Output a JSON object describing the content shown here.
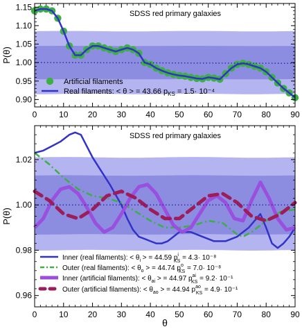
{
  "chart_data": [
    {
      "type": "line",
      "title": "SDSS red primary galaxies",
      "xlabel": "",
      "ylabel": "P(θ)",
      "xlim": [
        0,
        90
      ],
      "ylim": [
        0.88,
        1.16
      ],
      "xticks": [
        "0",
        "10",
        "20",
        "30",
        "40",
        "50",
        "60",
        "70",
        "80",
        "90"
      ],
      "yticks": [
        "0.90",
        "0.95",
        "1.00",
        "1.05",
        "1.10",
        "1.15"
      ],
      "ytick_values": [
        0.9,
        0.95,
        1.0,
        1.05,
        1.1,
        1.15
      ],
      "band_outer": {
        "lower": 0.915,
        "upper": 1.085,
        "color": "#b4b4f0"
      },
      "band_inner": {
        "lower": 0.955,
        "upper": 1.045,
        "color": "#8c8ce0"
      },
      "series": [
        {
          "name": "Artificial filaments",
          "style": "dots",
          "color": "#3cb043",
          "x": [
            0,
            2,
            4,
            6,
            8,
            10,
            12,
            14,
            16,
            18,
            20,
            22,
            24,
            26,
            28,
            30,
            32,
            34,
            36,
            38,
            40,
            42,
            44,
            46,
            48,
            50,
            52,
            54,
            56,
            58,
            60,
            62,
            64,
            66,
            68,
            70,
            72,
            74,
            76,
            78,
            80,
            82,
            84,
            86,
            88,
            90
          ],
          "y": [
            1.14,
            1.145,
            1.145,
            1.14,
            1.12,
            1.085,
            1.045,
            1.02,
            1.02,
            1.035,
            1.045,
            1.045,
            1.04,
            1.035,
            1.03,
            1.035,
            1.04,
            1.035,
            1.025,
            1.0,
            0.995,
            0.985,
            0.978,
            0.972,
            0.968,
            0.965,
            0.963,
            0.96,
            0.957,
            0.956,
            0.96,
            0.958,
            0.955,
            0.97,
            0.985,
            0.995,
            0.998,
            0.995,
            0.99,
            0.985,
            0.975,
            0.96,
            0.945,
            0.93,
            0.918,
            0.905
          ]
        },
        {
          "name": "Real filaments: <θ> = 43.66  p",
          "style": "line",
          "color": "#3232c8",
          "x": [
            0,
            2,
            4,
            6,
            8,
            10,
            12,
            14,
            16,
            18,
            20,
            22,
            24,
            26,
            28,
            30,
            32,
            34,
            36,
            38,
            40,
            42,
            44,
            46,
            48,
            50,
            52,
            54,
            56,
            58,
            60,
            62,
            64,
            66,
            68,
            70,
            72,
            74,
            76,
            78,
            80,
            82,
            84,
            86,
            88,
            90
          ],
          "y": [
            1.14,
            1.145,
            1.145,
            1.14,
            1.12,
            1.085,
            1.045,
            1.02,
            1.02,
            1.035,
            1.045,
            1.045,
            1.04,
            1.035,
            1.03,
            1.035,
            1.04,
            1.035,
            1.025,
            1.0,
            0.995,
            0.985,
            0.978,
            0.972,
            0.968,
            0.965,
            0.963,
            0.96,
            0.957,
            0.956,
            0.96,
            0.958,
            0.955,
            0.97,
            0.985,
            0.995,
            0.998,
            0.995,
            0.99,
            0.985,
            0.975,
            0.96,
            0.945,
            0.93,
            0.918,
            0.905
          ]
        },
        {
          "name": "",
          "style": "dotted",
          "color": "#2828a0",
          "x": [
            0,
            90
          ],
          "y": [
            1.0,
            0.998
          ]
        }
      ],
      "legend": [
        {
          "label": "Artificial filaments",
          "sub": "",
          "tail": ""
        },
        {
          "label": "Real filaments: < θ > = 43.66  p",
          "sub": "KS",
          "tail": " = 1.5· 10⁻⁴"
        }
      ]
    },
    {
      "type": "line",
      "title": "SDSS red primary galaxies",
      "xlabel": "θ",
      "ylabel": "P(θ)",
      "xlim": [
        0,
        90
      ],
      "ylim": [
        0.955,
        1.035
      ],
      "xticks": [
        "0",
        "10",
        "20",
        "30",
        "40",
        "50",
        "60",
        "70",
        "80",
        "90"
      ],
      "yticks": [
        "0.96",
        "0.98",
        "1.00",
        "1.02"
      ],
      "ytick_values": [
        0.96,
        0.98,
        1.0,
        1.02
      ],
      "band_outer": {
        "lower": 0.98,
        "upper": 1.021,
        "color": "#b4b4f0"
      },
      "band_inner": {
        "lower": 0.987,
        "upper": 1.013,
        "color": "#8c8ce0"
      },
      "series": [
        {
          "name": "Inner (real filaments)",
          "style": "line",
          "color": "#3232c8",
          "x": [
            0,
            3,
            6,
            9,
            12,
            14,
            16,
            18,
            20,
            23,
            26,
            30,
            32,
            34,
            36,
            38,
            40,
            42,
            44,
            46,
            48,
            50,
            54,
            58,
            62,
            66,
            70,
            74,
            78,
            80,
            82,
            84,
            86,
            88,
            90
          ],
          "y": [
            1.023,
            1.024,
            1.026,
            1.028,
            1.031,
            1.032,
            1.031,
            1.026,
            1.021,
            1.015,
            1.009,
            1.0,
            0.994,
            0.989,
            0.986,
            0.985,
            0.984,
            0.983,
            0.983,
            0.984,
            0.986,
            0.988,
            0.988,
            0.986,
            0.984,
            0.984,
            0.986,
            0.99,
            0.996,
            0.99,
            0.983,
            0.981,
            0.983,
            0.986,
            0.99
          ]
        },
        {
          "name": "Outer (real filaments)",
          "style": "dashdot",
          "color": "#3cb043",
          "x": [
            0,
            5,
            10,
            15,
            20,
            25,
            30,
            35,
            40,
            45,
            50,
            55,
            60,
            65,
            70,
            72,
            75,
            80,
            85,
            90
          ],
          "y": [
            1.023,
            1.018,
            1.012,
            1.007,
            1.004,
            1.003,
            1.001,
            0.997,
            0.993,
            0.99,
            0.99,
            0.991,
            0.993,
            0.992,
            0.987,
            0.986,
            0.988,
            0.993,
            0.997,
            0.998
          ]
        },
        {
          "name": "Inner (artificial filaments)",
          "style": "thick",
          "color": "#9b4dde",
          "x": [
            0,
            3,
            6,
            9,
            12,
            15,
            18,
            21,
            24,
            27,
            30,
            33,
            36,
            39,
            42,
            45,
            48,
            51,
            54,
            57,
            60,
            63,
            66,
            69,
            72,
            75,
            78,
            81,
            84,
            87,
            90
          ],
          "y": [
            0.99,
            0.994,
            1.002,
            1.007,
            1.008,
            1.005,
            0.999,
            0.992,
            0.988,
            0.99,
            0.996,
            1.003,
            1.008,
            1.009,
            1.005,
            0.998,
            0.991,
            0.988,
            0.99,
            0.996,
            1.002,
            1.004,
            1.001,
            0.994,
            0.993,
            1.002,
            1.01,
            1.003,
            0.994,
            0.989,
            0.99
          ]
        },
        {
          "name": "Outer (artificial filaments)",
          "style": "dashed",
          "color": "#9b1e5a",
          "x": [
            0,
            5,
            10,
            15,
            20,
            25,
            30,
            35,
            40,
            45,
            50,
            55,
            60,
            65,
            70,
            75,
            80,
            85,
            90
          ],
          "y": [
            1.006,
            1.002,
            0.996,
            0.994,
            0.998,
            1.004,
            1.006,
            1.003,
            0.998,
            0.994,
            0.994,
            0.999,
            1.004,
            1.005,
            1.001,
            0.995,
            0.993,
            0.996,
            1.001
          ]
        },
        {
          "name": "",
          "style": "dotted",
          "color": "#2828a0",
          "x": [
            0,
            90
          ],
          "y": [
            1.0,
            1.0
          ]
        }
      ],
      "legend": [
        {
          "label": "Inner (real filaments):  < θ",
          "sub1": "i",
          "mid": " > = 44.59  p",
          "sup": "i",
          "sub": "KS",
          "tail": " = 4.3· 10⁻⁸"
        },
        {
          "label": "Outer (real filaments):  < θ",
          "sub1": "o",
          "mid": " > = 44.74  p",
          "sup": "o",
          "sub": "KS",
          "tail": " = 7.0· 10⁻⁸"
        },
        {
          "label": "Inner (artificial filaments):  < θ",
          "sub1": "ai",
          "mid": " > = 44.97  p",
          "sup": "ai",
          "sub": "KS",
          "tail": " = 9.2· 10⁻¹"
        },
        {
          "label": "Outer (artificial filaments):  < θ",
          "sub1": "ao",
          "mid": " > = 44.94  p",
          "sup": "ao",
          "sub": "KS",
          "tail": " = 4.9· 10⁻¹"
        }
      ]
    }
  ]
}
